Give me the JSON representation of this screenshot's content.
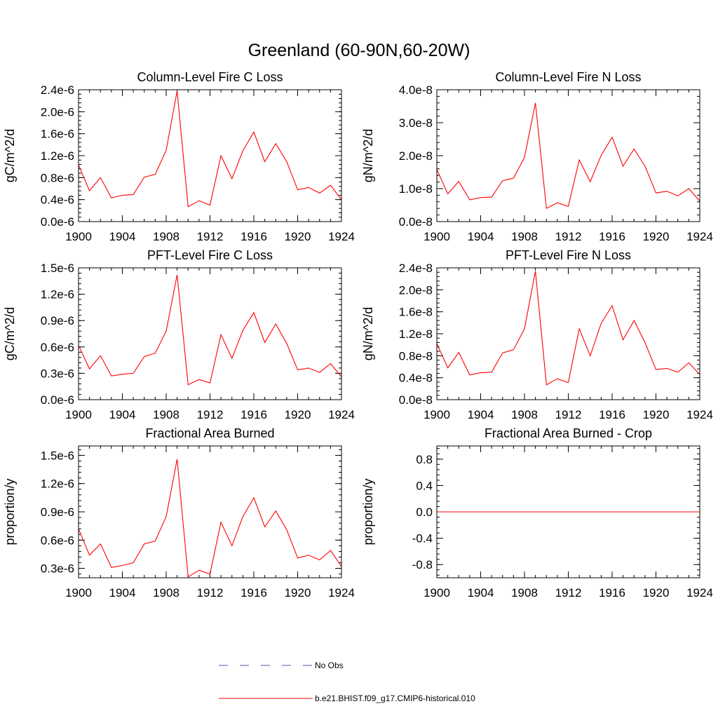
{
  "figure": {
    "title": "Greenland (60-90N,60-20W)",
    "series_color": "#ff0000",
    "obs_color": "#4a5aa8"
  },
  "legend": {
    "entries": [
      {
        "label": "No Obs",
        "style": "dashed",
        "color": "#4a5aa8"
      },
      {
        "label": "b.e21.BHIST.f09_g17.CMIP6-historical.010",
        "style": "solid",
        "color": "#ff0000"
      }
    ]
  },
  "chart_data": [
    {
      "type": "line",
      "title": "Column-Level Fire C Loss",
      "ylabel": "gC/m^2/d",
      "xlabel": "",
      "x": [
        1900,
        1901,
        1902,
        1903,
        1904,
        1905,
        1906,
        1907,
        1908,
        1909,
        1910,
        1911,
        1912,
        1913,
        1914,
        1915,
        1916,
        1917,
        1918,
        1919,
        1920,
        1921,
        1922,
        1923,
        1924
      ],
      "values": [
        1.03e-06,
        5.6e-07,
        8e-07,
        4.3e-07,
        4.8e-07,
        4.9e-07,
        8.1e-07,
        8.6e-07,
        1.3e-06,
        2.38e-06,
        2.7e-07,
        3.8e-07,
        3e-07,
        1.2e-06,
        7.8e-07,
        1.29e-06,
        1.63e-06,
        1.09e-06,
        1.42e-06,
        1.09e-06,
        5.8e-07,
        6.2e-07,
        5.2e-07,
        6.6e-07,
        4e-07
      ],
      "xlim": [
        1900,
        1924
      ],
      "ylim": [
        0,
        2.4e-06
      ],
      "xticks": [
        1900,
        1904,
        1908,
        1912,
        1916,
        1920,
        1924
      ],
      "xtick_labels": [
        "1900",
        "1904",
        "1908",
        "1912",
        "1916",
        "1920",
        "1924"
      ],
      "yticks": [
        0,
        4e-07,
        8e-07,
        1.2e-06,
        1.6e-06,
        2e-06,
        2.4e-06
      ],
      "ytick_labels": [
        "0.0e-6",
        "0.4e-6",
        "0.8e-6",
        "1.2e-6",
        "1.6e-6",
        "2.0e-6",
        "2.4e-6"
      ],
      "grid": false
    },
    {
      "type": "line",
      "title": "Column-Level Fire N Loss",
      "ylabel": "gN/m^2/d",
      "xlabel": "",
      "x": [
        1900,
        1901,
        1902,
        1903,
        1904,
        1905,
        1906,
        1907,
        1908,
        1909,
        1910,
        1911,
        1912,
        1913,
        1914,
        1915,
        1916,
        1917,
        1918,
        1919,
        1920,
        1921,
        1922,
        1923,
        1924
      ],
      "values": [
        1.58e-08,
        8.4e-09,
        1.22e-08,
        6.6e-09,
        7.3e-09,
        7.4e-09,
        1.24e-08,
        1.32e-08,
        1.95e-08,
        3.6e-08,
        4e-09,
        5.7e-09,
        4.6e-09,
        1.87e-08,
        1.21e-08,
        2.01e-08,
        2.56e-08,
        1.68e-08,
        2.2e-08,
        1.68e-08,
        8.7e-09,
        9.2e-09,
        7.8e-09,
        1e-08,
        6.2e-09
      ],
      "xlim": [
        1900,
        1924
      ],
      "ylim": [
        0,
        4e-08
      ],
      "xticks": [
        1900,
        1904,
        1908,
        1912,
        1916,
        1920,
        1924
      ],
      "xtick_labels": [
        "1900",
        "1904",
        "1908",
        "1912",
        "1916",
        "1920",
        "1924"
      ],
      "yticks": [
        0,
        1e-08,
        2e-08,
        3e-08,
        4e-08
      ],
      "ytick_labels": [
        "0.0e-8",
        "1.0e-8",
        "2.0e-8",
        "3.0e-8",
        "4.0e-8"
      ],
      "grid": false
    },
    {
      "type": "line",
      "title": "PFT-Level Fire C Loss",
      "ylabel": "gC/m^2/d",
      "xlabel": "",
      "x": [
        1900,
        1901,
        1902,
        1903,
        1904,
        1905,
        1906,
        1907,
        1908,
        1909,
        1910,
        1911,
        1912,
        1913,
        1914,
        1915,
        1916,
        1917,
        1918,
        1919,
        1920,
        1921,
        1922,
        1923,
        1924
      ],
      "values": [
        6.2e-07,
        3.5e-07,
        5e-07,
        2.7e-07,
        2.9e-07,
        3e-07,
        4.9e-07,
        5.3e-07,
        7.8e-07,
        1.42e-06,
        1.7e-07,
        2.3e-07,
        1.9e-07,
        7.4e-07,
        4.7e-07,
        7.9e-07,
        9.9e-07,
        6.5e-07,
        8.6e-07,
        6.4e-07,
        3.4e-07,
        3.6e-07,
        3.1e-07,
        4.1e-07,
        2.6e-07
      ],
      "xlim": [
        1900,
        1924
      ],
      "ylim": [
        0,
        1.5e-06
      ],
      "xticks": [
        1900,
        1904,
        1908,
        1912,
        1916,
        1920,
        1924
      ],
      "xtick_labels": [
        "1900",
        "1904",
        "1908",
        "1912",
        "1916",
        "1920",
        "1924"
      ],
      "yticks": [
        0,
        3e-07,
        6e-07,
        9e-07,
        1.2e-06,
        1.5e-06
      ],
      "ytick_labels": [
        "0.0e-6",
        "0.3e-6",
        "0.6e-6",
        "0.9e-6",
        "1.2e-6",
        "1.5e-6"
      ],
      "grid": false
    },
    {
      "type": "line",
      "title": "PFT-Level Fire N Loss",
      "ylabel": "gN/m^2/d",
      "xlabel": "",
      "x": [
        1900,
        1901,
        1902,
        1903,
        1904,
        1905,
        1906,
        1907,
        1908,
        1909,
        1910,
        1911,
        1912,
        1913,
        1914,
        1915,
        1916,
        1917,
        1918,
        1919,
        1920,
        1921,
        1922,
        1923,
        1924
      ],
      "values": [
        1.02e-08,
        5.8e-09,
        8.6e-09,
        4.5e-09,
        4.9e-09,
        5e-09,
        8.5e-09,
        9.1e-09,
        1.29e-08,
        2.34e-08,
        2.7e-09,
        3.8e-09,
        3.1e-09,
        1.29e-08,
        8e-09,
        1.39e-08,
        1.71e-08,
        1.09e-08,
        1.44e-08,
        1.04e-08,
        5.5e-09,
        5.7e-09,
        5e-09,
        6.7e-09,
        4.6e-09
      ],
      "xlim": [
        1900,
        1924
      ],
      "ylim": [
        0,
        2.4e-08
      ],
      "xticks": [
        1900,
        1904,
        1908,
        1912,
        1916,
        1920,
        1924
      ],
      "xtick_labels": [
        "1900",
        "1904",
        "1908",
        "1912",
        "1916",
        "1920",
        "1924"
      ],
      "yticks": [
        0,
        4e-09,
        8e-09,
        1.2e-08,
        1.6e-08,
        2e-08,
        2.4e-08
      ],
      "ytick_labels": [
        "0.0e-8",
        "0.4e-8",
        "0.8e-8",
        "1.2e-8",
        "1.6e-8",
        "2.0e-8",
        "2.4e-8"
      ],
      "grid": false
    },
    {
      "type": "line",
      "title": "Fractional Area Burned",
      "ylabel": "proportion/y",
      "xlabel": "",
      "x": [
        1900,
        1901,
        1902,
        1903,
        1904,
        1905,
        1906,
        1907,
        1908,
        1909,
        1910,
        1911,
        1912,
        1913,
        1914,
        1915,
        1916,
        1917,
        1918,
        1919,
        1920,
        1921,
        1922,
        1923,
        1924
      ],
      "values": [
        7.2e-07,
        4.4e-07,
        5.6e-07,
        3.1e-07,
        3.3e-07,
        3.6e-07,
        5.6e-07,
        5.9e-07,
        8.5e-07,
        1.46e-06,
        2.1e-07,
        2.8e-07,
        2.4e-07,
        7.9e-07,
        5.4e-07,
        8.5e-07,
        1.05e-06,
        7.4e-07,
        9.1e-07,
        7.1e-07,
        4.1e-07,
        4.4e-07,
        3.9e-07,
        4.9e-07,
        3.2e-07
      ],
      "xlim": [
        1900,
        1924
      ],
      "ylim": [
        2e-07,
        1.6e-06
      ],
      "xticks": [
        1900,
        1904,
        1908,
        1912,
        1916,
        1920,
        1924
      ],
      "xtick_labels": [
        "1900",
        "1904",
        "1908",
        "1912",
        "1916",
        "1920",
        "1924"
      ],
      "yticks": [
        3e-07,
        6e-07,
        9e-07,
        1.2e-06,
        1.5e-06
      ],
      "ytick_labels": [
        "0.3e-6",
        "0.6e-6",
        "0.9e-6",
        "1.2e-6",
        "1.5e-6"
      ],
      "grid": false
    },
    {
      "type": "line",
      "title": "Fractional Area Burned - Crop",
      "ylabel": "proportion/y",
      "xlabel": "",
      "x": [
        1900,
        1901,
        1902,
        1903,
        1904,
        1905,
        1906,
        1907,
        1908,
        1909,
        1910,
        1911,
        1912,
        1913,
        1914,
        1915,
        1916,
        1917,
        1918,
        1919,
        1920,
        1921,
        1922,
        1923,
        1924
      ],
      "values": [
        0,
        0,
        0,
        0,
        0,
        0,
        0,
        0,
        0,
        0,
        0,
        0,
        0,
        0,
        0,
        0,
        0,
        0,
        0,
        0,
        0,
        0,
        0,
        0,
        0
      ],
      "xlim": [
        1900,
        1924
      ],
      "ylim": [
        -1.0,
        1.0
      ],
      "xticks": [
        1900,
        1904,
        1908,
        1912,
        1916,
        1920,
        1924
      ],
      "xtick_labels": [
        "1900",
        "1904",
        "1908",
        "1912",
        "1916",
        "1920",
        "1924"
      ],
      "yticks": [
        -0.8,
        -0.4,
        0,
        0.4,
        0.8
      ],
      "ytick_labels": [
        "-0.8",
        "-0.4",
        "0.0",
        "0.4",
        "0.8"
      ],
      "grid": false
    }
  ]
}
